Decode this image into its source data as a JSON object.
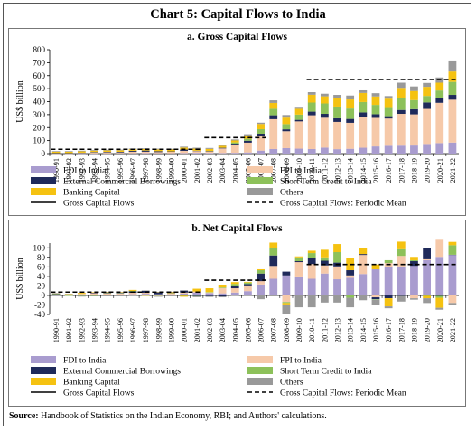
{
  "title": "Chart 5: Capital Flows to India",
  "source_label": "Source:",
  "source_text": "Handbook of Statistics on the Indian Economy, RBI; and Authors' calculations.",
  "colors": {
    "fdi": "#a99ccf",
    "ecb": "#1f2a5a",
    "banking": "#f5c211",
    "fpi": "#f6c9a9",
    "stc": "#8dc15a",
    "others": "#999999",
    "gross_line": "#000000",
    "mean_line": "#000000"
  },
  "legend": {
    "fdi": "FDI to India",
    "ecb": "External Commercial Borrowings",
    "banking": "Banking Capital",
    "gross": "Gross Capital Flows",
    "fpi": "FPI to India",
    "stc": "Short Term Credit to India",
    "others": "Others",
    "mean": "Gross Capital Flows: Periodic Mean",
    "net_mean": "Gross Capital Flows: Periodic Mean"
  },
  "chart_data": [
    {
      "type": "bar",
      "stacked": true,
      "title": "a. Gross Capital Flows",
      "ylabel": "US$ billion",
      "ylim": [
        0,
        800
      ],
      "yticks": [
        0,
        100,
        200,
        300,
        400,
        500,
        600,
        700,
        800
      ],
      "grid": false,
      "categories": [
        "1990-91",
        "1991-92",
        "1992-93",
        "1993-94",
        "1994-95",
        "1995-96",
        "1996-97",
        "1997-98",
        "1998-99",
        "1999-00",
        "2000-01",
        "2001-02",
        "2002-03",
        "2003-04",
        "2004-05",
        "2005-06",
        "2006-07",
        "2007-08",
        "2008-09",
        "2009-10",
        "2010-11",
        "2011-12",
        "2012-13",
        "2013-14",
        "2014-15",
        "2015-16",
        "2016-17",
        "2017-18",
        "2018-19",
        "2019-20",
        "2020-21",
        "2021-22"
      ],
      "series": [
        {
          "name": "FDI to India",
          "key": "fdi",
          "values": [
            0.1,
            0.1,
            0.3,
            0.6,
            1,
            2,
            2.5,
            3.5,
            2.5,
            2.2,
            4,
            6,
            5,
            4.5,
            6,
            9,
            23,
            35,
            42,
            38,
            35,
            46,
            34,
            37,
            45,
            55,
            60,
            61,
            62,
            74,
            81,
            85
          ]
        },
        {
          "name": "FPI to India",
          "key": "fpi",
          "values": [
            0.5,
            1,
            4,
            8,
            9,
            7,
            12,
            11,
            9,
            12,
            17,
            13,
            10,
            35,
            60,
            75,
            110,
            230,
            130,
            210,
            260,
            230,
            210,
            200,
            240,
            220,
            210,
            245,
            240,
            270,
            310,
            330
          ]
        },
        {
          "name": "External Commercial Borrowings",
          "key": "ecb",
          "values": [
            4,
            3,
            3,
            4,
            4,
            5,
            7,
            9,
            7,
            3,
            10,
            3,
            4,
            5,
            10,
            15,
            20,
            30,
            15,
            12,
            28,
            30,
            28,
            30,
            32,
            28,
            18,
            30,
            40,
            50,
            35,
            37
          ]
        },
        {
          "name": "Short Term Credit to India",
          "key": "stc",
          "values": [
            0,
            0,
            0,
            0,
            0,
            0,
            0,
            0,
            0,
            0,
            0,
            0,
            0,
            0,
            10,
            15,
            35,
            50,
            40,
            40,
            70,
            80,
            90,
            80,
            80,
            72,
            70,
            90,
            70,
            50,
            60,
            100
          ]
        },
        {
          "name": "Banking Capital",
          "key": "banking",
          "values": [
            10,
            10,
            10,
            10,
            10,
            11,
            12,
            12,
            14,
            14,
            15,
            16,
            17,
            15,
            15,
            25,
            40,
            45,
            50,
            45,
            60,
            55,
            65,
            70,
            70,
            65,
            65,
            80,
            70,
            70,
            60,
            80
          ]
        },
        {
          "name": "Others",
          "key": "others",
          "values": [
            5,
            5,
            5,
            5,
            5,
            5,
            5,
            5,
            5,
            5,
            7,
            7,
            7,
            7,
            8,
            10,
            10,
            20,
            20,
            15,
            20,
            20,
            25,
            30,
            20,
            25,
            20,
            40,
            35,
            30,
            40,
            85
          ]
        }
      ],
      "lines": [
        {
          "name": "Gross Capital Flows",
          "key": "gross",
          "style": "solid",
          "values": [
            20,
            20,
            22,
            27,
            29,
            30,
            38,
            40,
            37,
            36,
            53,
            45,
            45,
            68,
            110,
            150,
            240,
            410,
            300,
            360,
            480,
            460,
            450,
            450,
            490,
            470,
            440,
            550,
            520,
            540,
            590,
            720
          ]
        },
        {
          "name": "Gross Capital Flows: Periodic Mean",
          "key": "mean",
          "style": "dashed",
          "segments": [
            {
              "from": "1990-91",
              "to": "2001-02",
              "value": 33
            },
            {
              "from": "2002-03",
              "to": "2006-07",
              "value": 123
            },
            {
              "from": "2010-11",
              "to": "2021-22",
              "value": 570
            }
          ]
        }
      ]
    },
    {
      "type": "bar",
      "stacked": true,
      "title": "b. Net Capital Flows",
      "ylabel": "US$ billion",
      "ylim": [
        -40,
        110
      ],
      "yticks": [
        -40,
        -20,
        0,
        20,
        40,
        60,
        80,
        100
      ],
      "grid": false,
      "categories": [
        "1990-91",
        "1991-92",
        "1992-93",
        "1993-94",
        "1994-95",
        "1995-96",
        "1996-97",
        "1997-98",
        "1998-99",
        "1999-00",
        "2000-01",
        "2001-02",
        "2002-03",
        "2003-04",
        "2004-05",
        "2005-06",
        "2006-07",
        "2007-08",
        "2008-09",
        "2009-10",
        "2010-11",
        "2011-12",
        "2012-13",
        "2013-14",
        "2014-15",
        "2015-16",
        "2016-17",
        "2017-18",
        "2018-19",
        "2019-20",
        "2020-21",
        "2021-22"
      ],
      "series": [
        {
          "name": "FDI to India",
          "key": "fdi",
          "values": [
            0.1,
            0.1,
            0.3,
            0.6,
            1,
            2,
            2.5,
            3.5,
            2.5,
            2.2,
            4,
            6,
            5,
            4.3,
            6,
            9,
            23,
            35,
            42,
            38,
            35,
            46,
            34,
            37,
            45,
            55,
            60,
            61,
            62,
            74,
            81,
            85
          ]
        },
        {
          "name": "FPI to India",
          "key": "fpi",
          "values": [
            0.5,
            1,
            3,
            4,
            3,
            2,
            3,
            2,
            -1,
            2,
            2,
            2,
            1,
            11,
            9,
            12,
            7,
            27,
            -14,
            32,
            31,
            17,
            27,
            5,
            40,
            -4,
            8,
            22,
            -6,
            2,
            36,
            -16
          ]
        },
        {
          "name": "External Commercial Borrowings",
          "key": "ecb",
          "values": [
            2,
            1,
            -0.5,
            1,
            1,
            1,
            3,
            4,
            4,
            0.3,
            4,
            -1.5,
            -1.7,
            -2.5,
            5,
            3,
            16,
            22,
            8,
            2,
            12,
            10,
            8,
            11,
            2,
            -4,
            -6,
            -1,
            10,
            23,
            -1,
            0.5
          ]
        },
        {
          "name": "Short Term Credit to India",
          "key": "stc",
          "values": [
            1,
            -1,
            -1,
            -1,
            0.4,
            0.5,
            1,
            -0.5,
            -0.8,
            0.4,
            -0.8,
            -0.8,
            1,
            1.4,
            4,
            3,
            7,
            15,
            -2,
            8,
            11,
            7,
            22,
            -5,
            -0.1,
            -1,
            6,
            14,
            2,
            -1,
            -4,
            20
          ]
        },
        {
          "name": "Banking Capital",
          "key": "banking",
          "values": [
            0.5,
            1,
            2,
            1,
            1,
            1,
            2,
            -0.5,
            0.5,
            2,
            -2,
            6,
            8,
            6,
            4,
            1.5,
            2,
            12,
            -3,
            2,
            5,
            16,
            17,
            25,
            12,
            10,
            -17,
            16,
            7,
            -5,
            -21,
            7
          ]
        },
        {
          "name": "Others",
          "key": "others",
          "values": [
            1,
            0.5,
            -1,
            -1,
            1,
            0.5,
            -0.5,
            1,
            -1,
            0.7,
            0.8,
            -1.5,
            -1.5,
            -1.5,
            -0.6,
            -1.6,
            -8,
            0,
            -20,
            -25,
            -25,
            -15,
            -15,
            -20,
            -10,
            -12,
            -4,
            -12,
            -3,
            -10,
            -4,
            -5
          ]
        }
      ],
      "lines": [
        {
          "name": "Gross Capital Flows",
          "key": "gross",
          "style": "solid",
          "values": [
            7,
            4,
            3,
            9,
            10,
            4,
            11,
            10,
            8,
            10,
            9,
            8,
            10,
            16,
            28,
            25,
            45,
            107,
            7,
            51,
            62,
            68,
            90,
            48,
            90,
            41,
            37,
            92,
            54,
            83,
            64,
            86
          ]
        },
        {
          "name": "Gross Capital Flows: Periodic Mean",
          "key": "net_mean",
          "style": "dashed",
          "segments": [
            {
              "from": "1990-91",
              "to": "2001-02",
              "value": 7
            },
            {
              "from": "2002-03",
              "to": "2006-07",
              "value": 32
            },
            {
              "from": "2010-11",
              "to": "2021-22",
              "value": 65
            }
          ]
        }
      ]
    }
  ]
}
